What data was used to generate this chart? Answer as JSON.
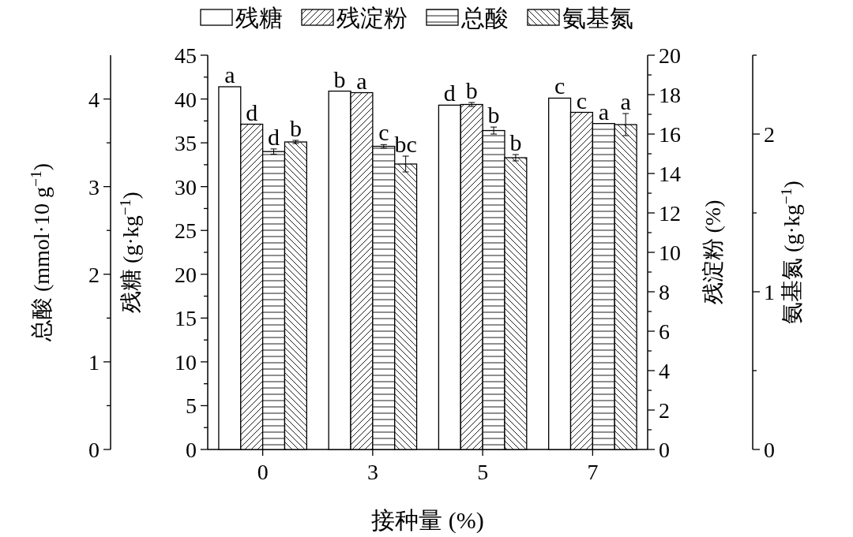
{
  "chart_data": [
    {
      "type": "bar",
      "xlabel": "接种量 (%)",
      "ylabel": "残糖 (g·kg$^{−1}$)",
      "y2label": "残淀粉 (%)",
      "y3label": "总酸 (mmol·10 g$^{−1}$)",
      "categories": [
        "0",
        "3",
        "5",
        "7"
      ],
      "series": [
        {
          "name": "残糖",
          "color": "#000000",
          "values": [
            41.4,
            40.9,
            39.3,
            40.1
          ],
          "value_labels": [
            "a",
            "b",
            "d",
            "c"
          ]
        },
        {
          "name": "残淀粉",
          "color": "#000000",
          "axis": "y2",
          "values": [
            16.5,
            18.1,
            17.5,
            17.1
          ],
          "errors": [
            null,
            null,
            0.1,
            null
          ],
          "value_labels": [
            "d",
            "a",
            "b",
            "c"
          ]
        },
        {
          "name": "总酸",
          "color": "#000000",
          "axis": "y3",
          "values": [
            3.4,
            3.46,
            3.64,
            3.72
          ],
          "errors": [
            0.03,
            0.02,
            0.04,
            null
          ],
          "value_labels": [
            "d",
            "c",
            "b",
            "a"
          ]
        }
      ],
      "ylim": [
        0,
        45
      ],
      "yticks": [
        0,
        {
          "value": 2.5,
          "label": null
        },
        5,
        {
          "value": 7.5,
          "label": null
        },
        10,
        {
          "value": 12.5,
          "label": null
        },
        15,
        {
          "value": 17.5,
          "label": null
        },
        20,
        {
          "value": 22.5,
          "label": null
        },
        25,
        {
          "value": 27.5,
          "label": null
        },
        30,
        {
          "value": 32.5,
          "label": null
        },
        35,
        {
          "value": 37.5,
          "label": null
        },
        40,
        {
          "value": 42.5,
          "label": null
        },
        45
      ],
      "y2lim": [
        0,
        20
      ],
      "y2ticks": [
        0,
        {
          "value": 1,
          "label": null
        },
        2,
        {
          "value": 3,
          "label": null
        },
        4,
        {
          "value": 5,
          "label": null
        },
        6,
        {
          "value": 7,
          "label": null
        },
        8,
        {
          "value": 9,
          "label": null
        },
        10,
        {
          "value": 11,
          "label": null
        },
        12,
        {
          "value": 13,
          "label": null
        },
        14,
        {
          "value": 15,
          "label": null
        },
        16,
        {
          "value": 17,
          "label": null
        },
        18,
        {
          "value": 19,
          "label": null
        },
        20
      ],
      "y3lim": [
        0,
        4.5
      ],
      "y3ticks": [
        0,
        {
          "value": 0.5,
          "label": null
        },
        1,
        {
          "value": 1.5,
          "label": null
        },
        2,
        {
          "value": 2.5,
          "label": null
        },
        3,
        {
          "value": 3.5,
          "label": null
        },
        4
      ],
      "legend": "top",
      "grid": false
    },
    {
      "type": "bar",
      "ylabel": "氨基氮 (g·kg$^{−1}$)",
      "categories": [
        null,
        null,
        null,
        null
      ],
      "tick_labels": "y",
      "series": [
        {
          "name": "氨基氮",
          "color": "#000000",
          "values": [
            1.95,
            1.81,
            1.85,
            2.06
          ],
          "errors": [
            0.01,
            0.05,
            0.02,
            0.07
          ],
          "value_labels": [
            "b",
            "bc",
            "b",
            "a"
          ]
        }
      ],
      "ylim": [
        0,
        2.5
      ],
      "yticks": [
        0,
        {
          "value": 0.5,
          "label": null
        },
        1,
        {
          "value": 1.5,
          "label": null
        },
        2,
        {
          "value": 2.5,
          "label": null
        }
      ],
      "legend": "top",
      "grid": false
    }
  ]
}
